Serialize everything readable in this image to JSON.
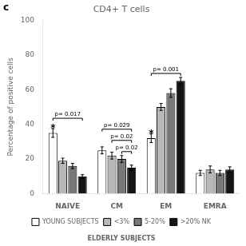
{
  "chart_data": {
    "type": "bar",
    "title": "CD4+ T cells",
    "subtitle": "ELDERLY SUBJECTS",
    "panel_label": "c",
    "y_label": "Percentage of positive cells",
    "categories": [
      "NAIVE",
      "CM",
      "EM",
      "EMRA"
    ],
    "series": [
      {
        "name": "YOUNG SUBJECTS",
        "color": "#ffffff",
        "values": [
          35,
          25,
          32,
          12
        ],
        "errors": [
          2.5,
          2.0,
          2.5,
          1.5
        ]
      },
      {
        "name": "<3%",
        "color": "#b8b8b8",
        "values": [
          19,
          22,
          50,
          14
        ],
        "errors": [
          1.5,
          2.0,
          2.0,
          2.0
        ]
      },
      {
        "name": "5-20%",
        "color": "#787878",
        "values": [
          16,
          20,
          58,
          12
        ],
        "errors": [
          1.5,
          2.0,
          2.5,
          1.5
        ]
      },
      {
        "name": ">20% NK",
        "color": "#151515",
        "values": [
          10,
          15,
          65,
          14
        ],
        "errors": [
          1.0,
          1.5,
          2.0,
          1.5
        ]
      }
    ],
    "ylim": [
      0,
      100
    ],
    "yticks": [
      0,
      20,
      40,
      60,
      80,
      100
    ],
    "grid": false,
    "legend": "bottom",
    "annotations": [
      {
        "text": "*",
        "category": "NAIVE",
        "series": [
          "YOUNG SUBJECTS"
        ]
      },
      {
        "text": "p= 0.017",
        "category": "NAIVE",
        "series": [
          "YOUNG SUBJECTS",
          ">20% NK"
        ]
      },
      {
        "text": "*",
        "category": "EM",
        "series": [
          "YOUNG SUBJECTS"
        ]
      },
      {
        "text": "p= 0.001",
        "category": "EM",
        "series": [
          "YOUNG SUBJECTS",
          ">20% NK"
        ]
      },
      {
        "text": "p= 0.029",
        "category": "CM",
        "series": [
          "YOUNG SUBJECTS",
          ">20% NK"
        ]
      },
      {
        "text": "p= 0.02",
        "category": "CM",
        "series": [
          "<3%",
          ">20% NK"
        ]
      },
      {
        "text": "p= 0.02",
        "category": "CM",
        "series": [
          "5-20%",
          ">20% NK"
        ]
      }
    ]
  }
}
